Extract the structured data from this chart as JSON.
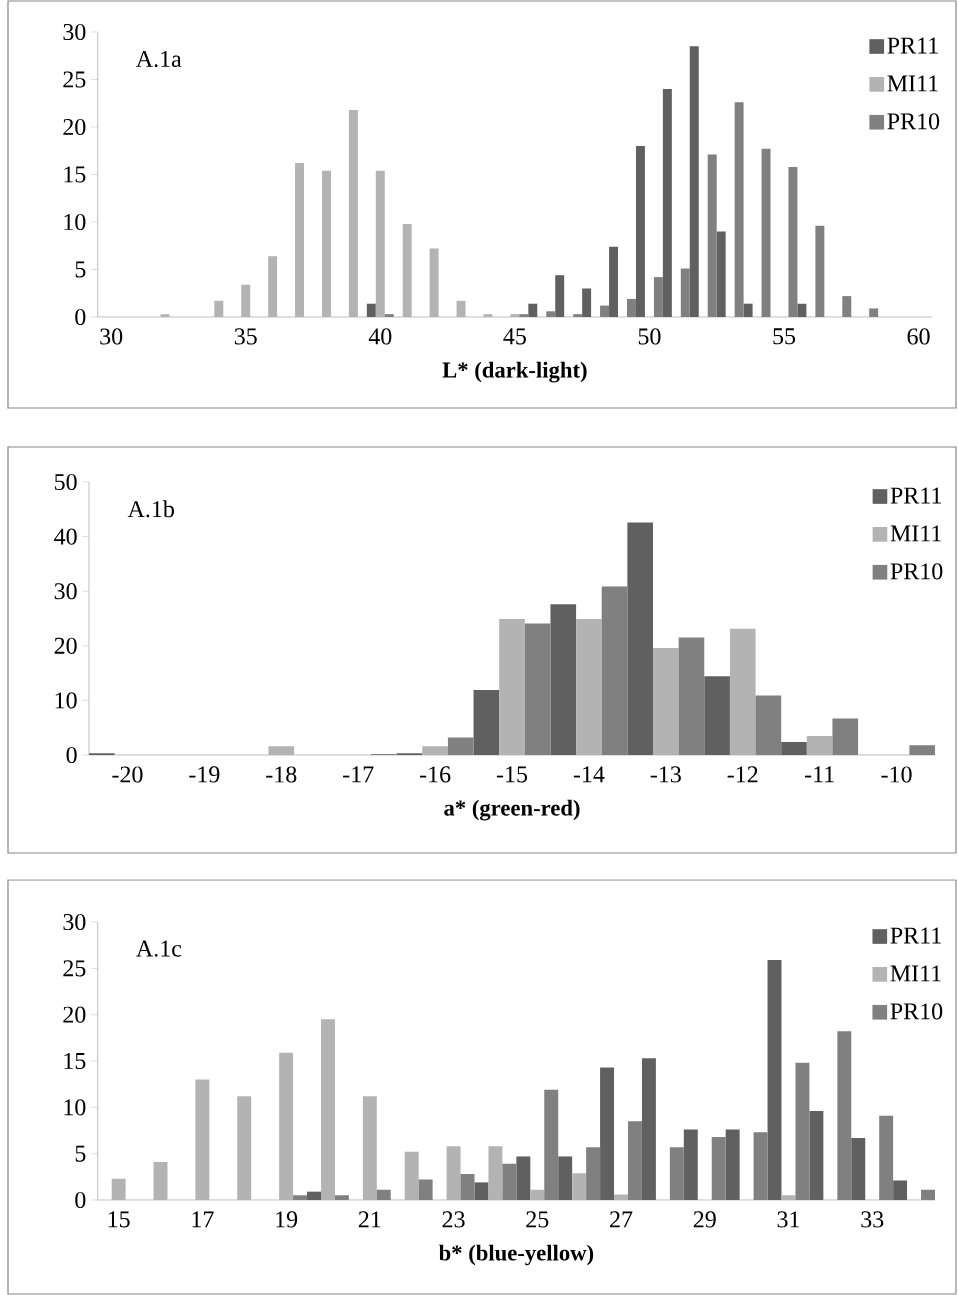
{
  "chart_data": [
    {
      "type": "bar",
      "xlabel": "L*  (dark-light)",
      "annotations": [
        "A.1a"
      ],
      "legend": "top right",
      "categories": [
        "30",
        null,
        null,
        null,
        null,
        "35",
        null,
        null,
        null,
        null,
        "40",
        null,
        null,
        null,
        null,
        "45",
        null,
        null,
        null,
        null,
        "50",
        null,
        null,
        null,
        null,
        "55",
        null,
        null,
        null,
        null,
        "60"
      ],
      "ylim": [
        0,
        30
      ],
      "yticks": [
        0,
        5,
        10,
        15,
        20,
        25,
        30
      ],
      "series": [
        {
          "name": "PR11",
          "color": "#606060",
          "values": [
            0,
            0,
            0,
            0,
            0,
            0,
            0,
            0,
            0,
            0,
            1.4,
            0,
            0,
            0,
            0,
            0,
            1.4,
            4.4,
            3.0,
            7.4,
            18.0,
            24.0,
            28.5,
            9.0,
            1.4,
            0,
            1.4,
            0,
            0,
            0,
            0
          ]
        },
        {
          "name": "MI11",
          "color": "#b3b3b3",
          "values": [
            0,
            0,
            0.3,
            0,
            1.7,
            3.4,
            6.4,
            16.2,
            15.4,
            21.8,
            15.4,
            9.8,
            7.2,
            1.7,
            0.3,
            0.3,
            0,
            0,
            0,
            0,
            0,
            0,
            0,
            0,
            0,
            0,
            0,
            0,
            0,
            0,
            0
          ]
        },
        {
          "name": "PR10",
          "color": "#808080",
          "values": [
            0,
            0,
            0,
            0,
            0,
            0,
            0,
            0,
            0,
            0,
            0.3,
            0,
            0,
            0,
            0,
            0.3,
            0.6,
            0.3,
            1.2,
            1.9,
            4.2,
            5.1,
            17.1,
            22.6,
            17.7,
            15.8,
            9.6,
            2.2,
            0.9,
            0,
            0
          ]
        }
      ]
    },
    {
      "type": "bar",
      "xlabel": "a*  (green-red)",
      "annotations": [
        "A.1b"
      ],
      "legend": "top right",
      "categories": [
        "-20",
        "-19",
        "-18",
        "-17",
        "-16",
        "-15",
        "-14",
        "-13",
        "-12",
        "-11",
        "-10"
      ],
      "ylim": [
        0,
        50
      ],
      "yticks": [
        0,
        10,
        20,
        30,
        40,
        50
      ],
      "series": [
        {
          "name": "PR11",
          "color": "#606060",
          "values": [
            0.3,
            0,
            0,
            0,
            0.3,
            11.9,
            27.6,
            42.6,
            14.4,
            2.4,
            0
          ]
        },
        {
          "name": "MI11",
          "color": "#b3b3b3",
          "values": [
            0,
            0,
            1.6,
            0,
            1.6,
            24.9,
            24.9,
            19.6,
            23.1,
            3.5,
            0
          ]
        },
        {
          "name": "PR10",
          "color": "#808080",
          "values": [
            0,
            0,
            0,
            0.2,
            3.2,
            24.1,
            30.9,
            21.5,
            10.9,
            6.7,
            1.8
          ]
        }
      ]
    },
    {
      "type": "bar",
      "xlabel": "b* (blue-yellow)",
      "annotations": [
        "A.1c"
      ],
      "legend": "top right",
      "categories": [
        "15",
        null,
        "17",
        null,
        "19",
        null,
        "21",
        null,
        "23",
        null,
        "25",
        null,
        "27",
        null,
        "29",
        null,
        "31",
        null,
        "33",
        null
      ],
      "ylim": [
        0,
        30
      ],
      "yticks": [
        0,
        5,
        10,
        15,
        20,
        25,
        30
      ],
      "series": [
        {
          "name": "PR11",
          "color": "#606060",
          "values": [
            0,
            0,
            0,
            0,
            0,
            0.9,
            0,
            0,
            0,
            1.9,
            4.7,
            4.7,
            14.3,
            15.3,
            7.6,
            7.6,
            25.9,
            9.6,
            6.7,
            2.1
          ]
        },
        {
          "name": "MI11",
          "color": "#b3b3b3",
          "values": [
            2.3,
            4.1,
            13.0,
            11.2,
            15.9,
            19.5,
            11.2,
            5.2,
            5.8,
            5.8,
            1.1,
            2.9,
            0.6,
            0,
            0,
            0,
            0.5,
            0,
            0,
            0
          ]
        },
        {
          "name": "PR10",
          "color": "#808080",
          "values": [
            0,
            0,
            0,
            0,
            0.5,
            0.5,
            1.1,
            2.2,
            2.8,
            3.9,
            11.9,
            5.7,
            8.5,
            5.7,
            6.8,
            7.3,
            14.8,
            18.2,
            9.1,
            1.1
          ]
        }
      ]
    }
  ]
}
